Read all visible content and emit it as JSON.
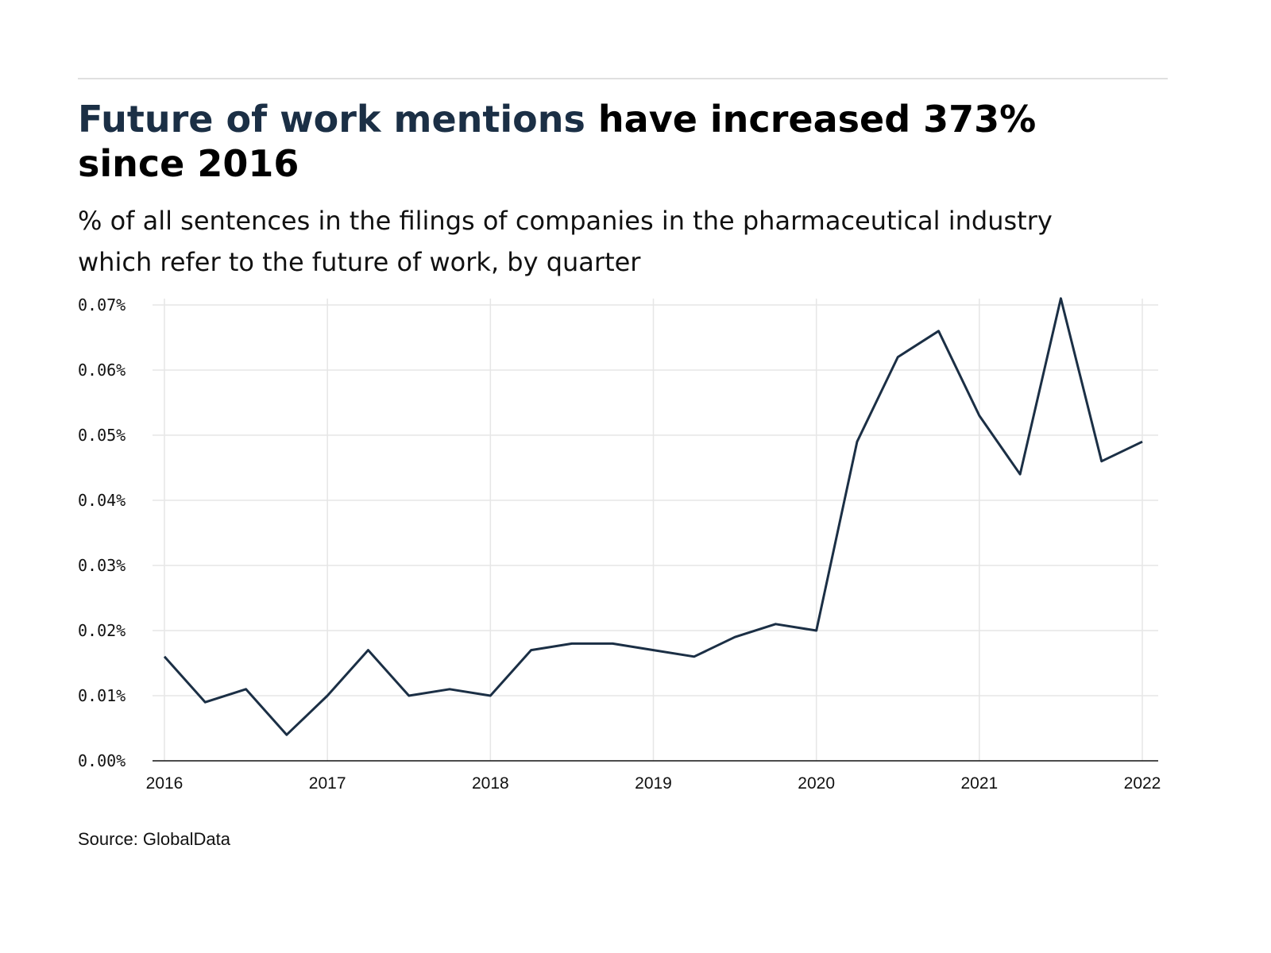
{
  "header": {
    "title_highlight": "Future of work mentions",
    "title_rest": " have increased 373% since 2016",
    "subtitle": "% of all sentences in the filings of companies in the pharmaceutical industry which refer to the future of work, by quarter"
  },
  "footer": {
    "source": "Source: GlobalData"
  },
  "colors": {
    "line": "#1b2f45",
    "grid": "#e6e6e6",
    "title_highlight": "#1b2f45"
  },
  "chart_data": {
    "type": "line",
    "title": "Future of work mentions have increased 373% since 2016",
    "xlabel": "",
    "ylabel": "",
    "x_start": 2016,
    "x_step": 0.25,
    "xlim": [
      2016,
      2022
    ],
    "ylim": [
      0,
      0.07
    ],
    "x_ticks": [
      "2016",
      "2017",
      "2018",
      "2019",
      "2020",
      "2021",
      "2022"
    ],
    "y_ticks": [
      "0.00%",
      "0.01%",
      "0.02%",
      "0.03%",
      "0.04%",
      "0.05%",
      "0.06%",
      "0.07%"
    ],
    "grid": true,
    "series": [
      {
        "name": "Future of work mentions (%)",
        "values": [
          0.016,
          0.009,
          0.011,
          0.004,
          0.01,
          0.017,
          0.01,
          0.011,
          0.01,
          0.017,
          0.018,
          0.018,
          0.017,
          0.016,
          0.019,
          0.021,
          0.02,
          0.049,
          0.062,
          0.066,
          0.053,
          0.044,
          0.071,
          0.046,
          0.049
        ]
      }
    ]
  }
}
